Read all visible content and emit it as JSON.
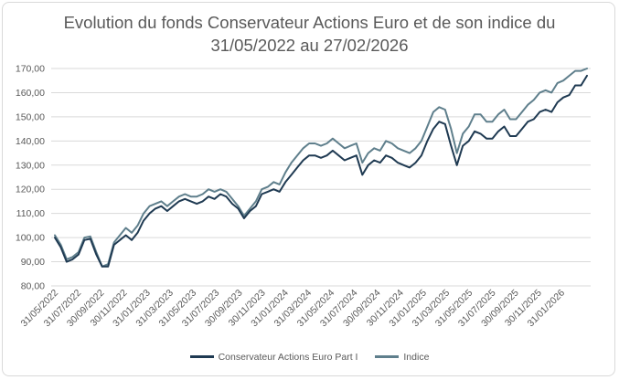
{
  "colors": {
    "fund": "#1f3a52",
    "index": "#5f7f8c",
    "grid": "#d9d9d9",
    "text": "#595959"
  },
  "title_lines": [
    "Evolution du fonds Conservateur Actions Euro et de son indice du",
    "31/05/2022 au 27/02/2026"
  ],
  "chart_data": {
    "type": "line",
    "title": "Evolution du fonds Conservateur Actions Euro et de son indice du 31/05/2022 au 27/02/2026",
    "xlabel": "",
    "ylabel": "",
    "ylim": [
      80,
      170
    ],
    "y_ticks": [
      "80,00",
      "90,00",
      "100,00",
      "110,00",
      "120,00",
      "130,00",
      "140,00",
      "150,00",
      "160,00",
      "170,00"
    ],
    "x_ticks": [
      "31/05/2022",
      "31/07/2022",
      "30/09/2022",
      "30/11/2022",
      "31/01/2023",
      "31/03/2023",
      "31/05/2023",
      "31/07/2023",
      "30/09/2023",
      "30/11/2023",
      "31/01/2024",
      "31/03/2024",
      "31/05/2024",
      "31/07/2024",
      "30/09/2024",
      "30/11/2024",
      "31/01/2025",
      "31/03/2025",
      "31/05/2025",
      "31/07/2025",
      "30/09/2025",
      "30/11/2025",
      "31/01/2026"
    ],
    "grid": true,
    "legend_position": "bottom",
    "x": [
      "31/05/2022",
      "15/06/2022",
      "30/06/2022",
      "15/07/2022",
      "31/07/2022",
      "15/08/2022",
      "31/08/2022",
      "15/09/2022",
      "30/09/2022",
      "15/10/2022",
      "31/10/2022",
      "15/11/2022",
      "30/11/2022",
      "15/12/2022",
      "31/12/2022",
      "15/01/2023",
      "31/01/2023",
      "15/02/2023",
      "28/02/2023",
      "15/03/2023",
      "31/03/2023",
      "15/04/2023",
      "30/04/2023",
      "15/05/2023",
      "31/05/2023",
      "15/06/2023",
      "30/06/2023",
      "15/07/2023",
      "31/07/2023",
      "15/08/2023",
      "31/08/2023",
      "15/09/2023",
      "30/09/2023",
      "15/10/2023",
      "31/10/2023",
      "15/11/2023",
      "30/11/2023",
      "15/12/2023",
      "31/12/2023",
      "15/01/2024",
      "31/01/2024",
      "15/02/2024",
      "29/02/2024",
      "15/03/2024",
      "31/03/2024",
      "15/04/2024",
      "30/04/2024",
      "15/05/2024",
      "31/05/2024",
      "15/06/2024",
      "30/06/2024",
      "15/07/2024",
      "31/07/2024",
      "15/08/2024",
      "31/08/2024",
      "15/09/2024",
      "30/09/2024",
      "15/10/2024",
      "31/10/2024",
      "15/11/2024",
      "30/11/2024",
      "15/12/2024",
      "31/12/2024",
      "15/01/2025",
      "31/01/2025",
      "15/02/2025",
      "28/02/2025",
      "15/03/2025",
      "31/03/2025",
      "15/04/2025",
      "30/04/2025",
      "15/05/2025",
      "31/05/2025",
      "15/06/2025",
      "30/06/2025",
      "15/07/2025",
      "31/07/2025",
      "15/08/2025",
      "31/08/2025",
      "15/09/2025",
      "30/09/2025",
      "15/10/2025",
      "31/10/2025",
      "15/11/2025",
      "30/11/2025",
      "15/12/2025",
      "31/12/2025",
      "15/01/2026",
      "31/01/2026",
      "15/02/2026",
      "27/02/2026"
    ],
    "series": [
      {
        "name": "Conservateur Actions Euro Part I",
        "values": [
          100,
          96,
          90,
          91,
          93,
          99,
          99.5,
          93,
          88,
          88,
          97,
          99,
          101,
          99,
          102,
          107,
          110,
          112,
          113,
          111,
          113,
          115,
          116,
          115,
          114,
          115,
          117,
          116,
          118,
          117,
          114,
          112,
          108,
          111,
          113,
          118,
          119,
          120,
          119,
          123,
          126,
          129,
          132,
          134,
          134,
          133,
          134,
          136,
          134,
          132,
          133,
          134,
          126,
          130,
          132,
          131,
          134,
          133,
          131,
          130,
          129,
          131,
          134,
          140,
          145,
          148,
          147,
          138,
          130,
          138,
          140,
          144,
          143,
          141,
          141,
          144,
          146,
          142,
          142,
          145,
          148,
          149,
          152,
          153,
          152,
          156,
          158,
          159,
          163,
          163,
          167
        ]
      },
      {
        "name": "Indice",
        "values": [
          101,
          97,
          91,
          92,
          94,
          100,
          100.5,
          94,
          88,
          89,
          98,
          101,
          104,
          102,
          105,
          110,
          113,
          114,
          115,
          113,
          115,
          117,
          118,
          117,
          117,
          118,
          120,
          119,
          120,
          119,
          116,
          113,
          109,
          112,
          115,
          120,
          121,
          123,
          122,
          127,
          131,
          134,
          137,
          139,
          139,
          138,
          139,
          141,
          139,
          137,
          138,
          139,
          131,
          135,
          137,
          136,
          140,
          139,
          137,
          136,
          135,
          137,
          140,
          146,
          152,
          154,
          153,
          145,
          135,
          143,
          146,
          151,
          151,
          148,
          148,
          151,
          153,
          149,
          149,
          152,
          155,
          157,
          160,
          161,
          160,
          164,
          165,
          167,
          169,
          169,
          170
        ]
      }
    ]
  }
}
